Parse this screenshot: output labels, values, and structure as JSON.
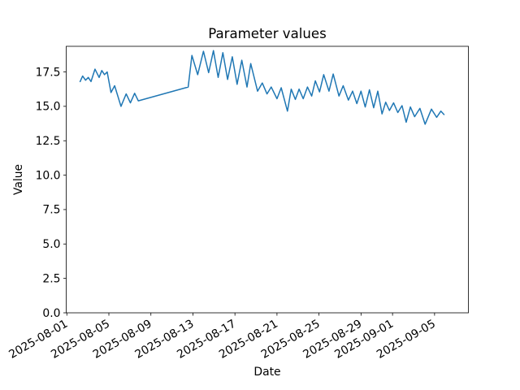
{
  "figure": {
    "background_color": "#ffffff",
    "frame_color": "#000000"
  },
  "chart_data": {
    "type": "line",
    "title": "Parameter values",
    "xlabel": "Date",
    "ylabel": "Value",
    "grid": false,
    "legend": "none",
    "x_unit": "day number, 1 = 2025-08-01",
    "xlim": [
      0.94,
      39.22
    ],
    "ylim": [
      0,
      19.36
    ],
    "x_ticks": [
      {
        "day": 1,
        "label": "2025-08-01"
      },
      {
        "day": 5,
        "label": "2025-08-05"
      },
      {
        "day": 9,
        "label": "2025-08-09"
      },
      {
        "day": 13,
        "label": "2025-08-13"
      },
      {
        "day": 17,
        "label": "2025-08-17"
      },
      {
        "day": 21,
        "label": "2025-08-21"
      },
      {
        "day": 25,
        "label": "2025-08-25"
      },
      {
        "day": 29,
        "label": "2025-08-29"
      },
      {
        "day": 32,
        "label": "2025-09-01"
      },
      {
        "day": 36,
        "label": "2025-09-05"
      }
    ],
    "y_ticks": [
      {
        "value": 0,
        "label": "0.0"
      },
      {
        "value": 2.5,
        "label": "2.5"
      },
      {
        "value": 5,
        "label": "5.0"
      },
      {
        "value": 7.5,
        "label": "7.5"
      },
      {
        "value": 10,
        "label": "10.0"
      },
      {
        "value": 12.5,
        "label": "12.5"
      },
      {
        "value": 15,
        "label": "15.0"
      },
      {
        "value": 17.5,
        "label": "17.5"
      }
    ],
    "series": [
      {
        "name": "parameter-values",
        "color": "#1f77b4",
        "note": "data gap rendered as straight segment between day 7.8 and day 12.55",
        "x": [
          2.26,
          2.5,
          2.78,
          3.04,
          3.3,
          3.68,
          4.07,
          4.33,
          4.58,
          4.84,
          5.2,
          5.55,
          6.15,
          6.65,
          7.05,
          7.45,
          7.8,
          12.55,
          12.9,
          13.45,
          14.0,
          14.5,
          14.95,
          15.4,
          15.85,
          16.3,
          16.75,
          17.2,
          17.65,
          18.15,
          18.5,
          19.15,
          19.6,
          20.05,
          20.45,
          21.0,
          21.4,
          22.0,
          22.35,
          22.75,
          23.1,
          23.5,
          23.9,
          24.3,
          24.65,
          25.05,
          25.45,
          25.95,
          26.35,
          26.9,
          27.3,
          27.8,
          28.2,
          28.6,
          29.0,
          29.4,
          29.8,
          30.2,
          30.6,
          31.0,
          31.35,
          31.7,
          32.1,
          32.5,
          32.9,
          33.3,
          33.7,
          34.1,
          34.6,
          35.1,
          35.7,
          36.2,
          36.6,
          36.9
        ],
        "y": [
          16.8,
          17.2,
          16.9,
          17.1,
          16.8,
          17.7,
          17.1,
          17.6,
          17.3,
          17.5,
          16.0,
          16.5,
          15.0,
          15.9,
          15.25,
          15.95,
          15.4,
          16.4,
          18.7,
          17.3,
          19.0,
          17.45,
          19.05,
          17.1,
          18.9,
          16.95,
          18.6,
          16.6,
          18.35,
          16.4,
          18.1,
          16.1,
          16.7,
          15.9,
          16.4,
          15.55,
          16.35,
          14.65,
          16.25,
          15.5,
          16.25,
          15.55,
          16.4,
          15.75,
          16.85,
          16.05,
          17.3,
          16.1,
          17.35,
          15.75,
          16.5,
          15.45,
          16.1,
          15.2,
          16.1,
          14.95,
          16.2,
          14.9,
          16.1,
          14.45,
          15.3,
          14.7,
          15.25,
          14.55,
          15.05,
          13.85,
          14.95,
          14.25,
          14.85,
          13.7,
          14.8,
          14.2,
          14.65,
          14.4
        ]
      }
    ]
  }
}
